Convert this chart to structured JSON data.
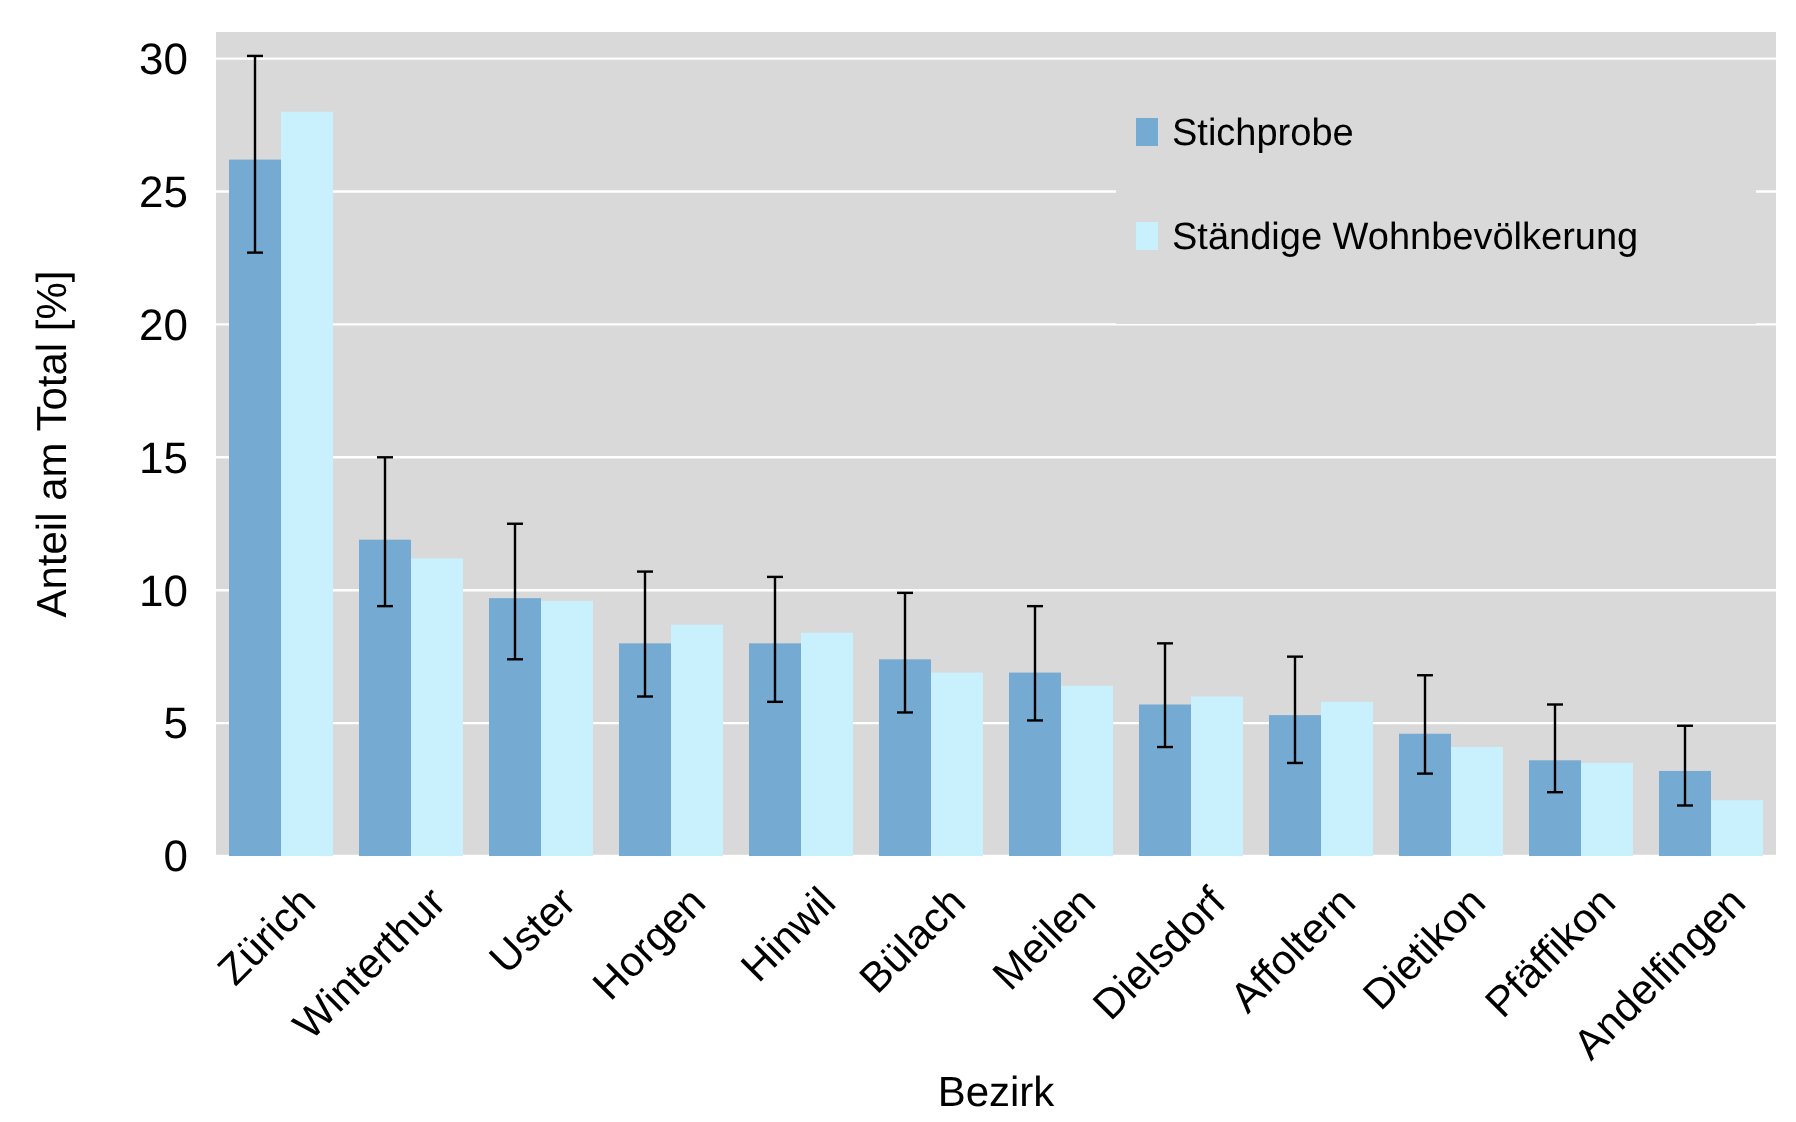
{
  "chart_data": {
    "type": "bar",
    "xlabel": "Bezirk",
    "ylabel": "Anteil am Total [%]",
    "categories": [
      "Zürich",
      "Winterthur",
      "Uster",
      "Horgen",
      "Hinwil",
      "Bülach",
      "Meilen",
      "Dielsdorf",
      "Affoltern",
      "Dietikon",
      "Pfäffikon",
      "Andelfingen"
    ],
    "series": [
      {
        "name": "Stichprobe",
        "color": "#75abd3",
        "values": [
          26.2,
          11.9,
          9.7,
          8.0,
          8.0,
          7.4,
          6.9,
          5.7,
          5.3,
          4.6,
          3.6,
          3.2
        ],
        "errors": [
          [
            22.7,
            30.1
          ],
          [
            9.4,
            15.0
          ],
          [
            7.4,
            12.5
          ],
          [
            6.0,
            10.7
          ],
          [
            5.8,
            10.5
          ],
          [
            5.4,
            9.9
          ],
          [
            5.1,
            9.4
          ],
          [
            4.1,
            8.0
          ],
          [
            3.5,
            7.5
          ],
          [
            3.1,
            6.8
          ],
          [
            2.4,
            5.7
          ],
          [
            1.9,
            4.9
          ]
        ]
      },
      {
        "name": "Ständige Wohnbevölkerung",
        "color": "#c9f0fd",
        "values": [
          28.0,
          11.2,
          9.6,
          8.7,
          8.4,
          6.9,
          6.4,
          6.0,
          5.8,
          4.1,
          3.5,
          2.1
        ]
      }
    ],
    "ylim": [
      0,
      31
    ],
    "yticks": [
      0,
      5,
      10,
      15,
      20,
      25,
      30
    ],
    "grid": "y",
    "legend": "top right"
  }
}
